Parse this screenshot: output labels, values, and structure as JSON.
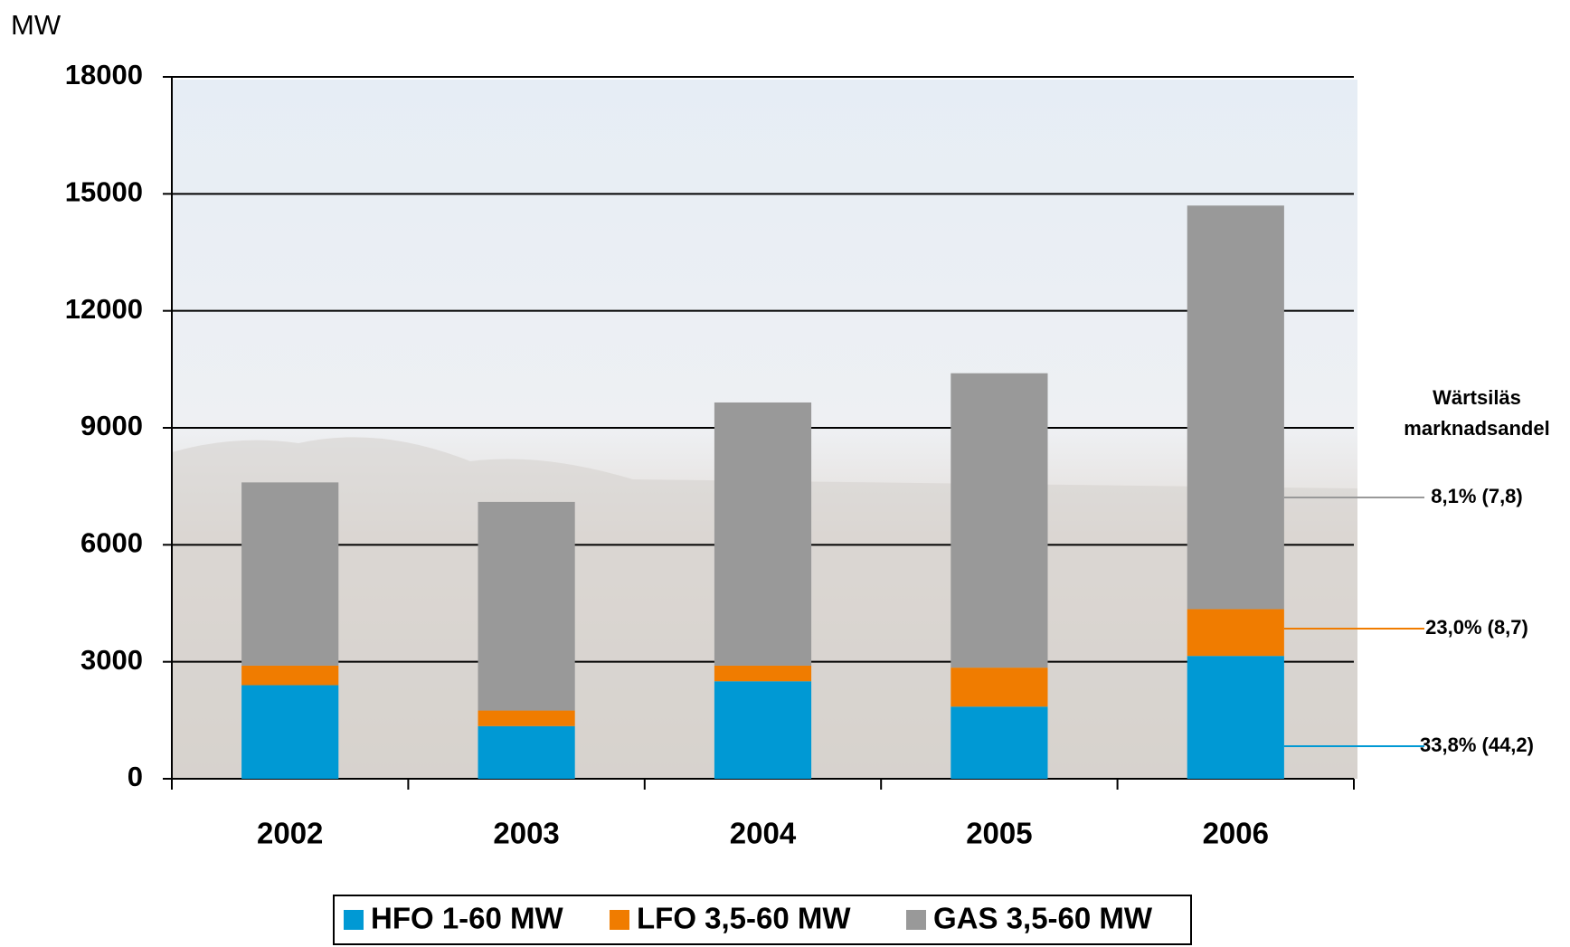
{
  "chart_data": {
    "type": "stacked-bar",
    "y_label": "MW",
    "categories": [
      "2002",
      "2003",
      "2004",
      "2005",
      "2006"
    ],
    "series": [
      {
        "name": "HFO 1-60 MW",
        "color": "#0099d4",
        "values": [
          2400,
          1350,
          2500,
          1850,
          3150
        ],
        "share_label": "33,8% (44,2)"
      },
      {
        "name": "LFO 3,5-60 MW",
        "color": "#f07c00",
        "values": [
          500,
          400,
          400,
          1000,
          1200
        ],
        "share_label": "23,0% (8,7)"
      },
      {
        "name": "GAS 3,5-60 MW",
        "color": "#999999",
        "values": [
          4700,
          5350,
          6750,
          7550,
          10350
        ],
        "share_label": "8,1% (7,8)"
      }
    ],
    "share_title": [
      "Wärtsiläs",
      "marknadsandel"
    ],
    "ylim": [
      0,
      18000
    ],
    "yticks": [
      0,
      3000,
      6000,
      9000,
      12000,
      15000,
      18000
    ],
    "grid": true
  }
}
